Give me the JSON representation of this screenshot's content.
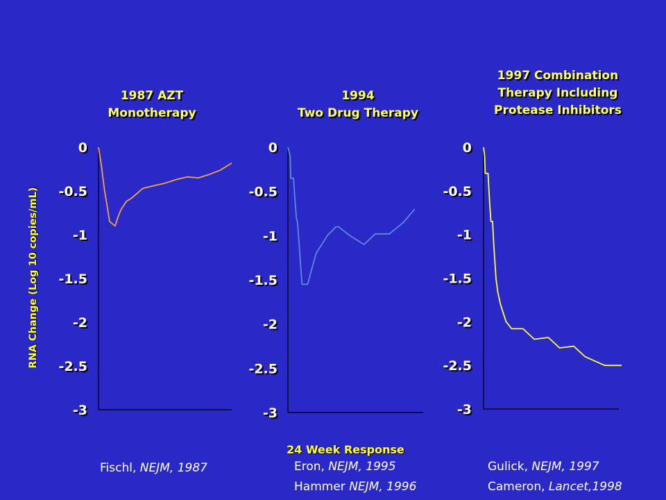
{
  "ylabel": "RNA Change (Log 10 copies/mL)",
  "xnote": "24 Week Response",
  "colors": {
    "background": "#2a29c8",
    "title": "#ffff66",
    "tick": "#ffffff"
  },
  "chart_data": [
    {
      "type": "line",
      "title_lines": [
        "1987 AZT",
        "Monotherapy"
      ],
      "yticks": [
        "0",
        "-0.5",
        "-1",
        "-1.5",
        "-2",
        "-2.5",
        "-3"
      ],
      "ylim": [
        -3,
        0
      ],
      "xlim": [
        0,
        24
      ],
      "series": [
        {
          "color": "#f5a341",
          "x": [
            0,
            0.5,
            0.8,
            1.1,
            1.5,
            2,
            3,
            3.5,
            4,
            5,
            6,
            8,
            10,
            12,
            14,
            16,
            18,
            20,
            22,
            24
          ],
          "y": [
            0,
            -0.2,
            -0.35,
            -0.5,
            -0.65,
            -0.85,
            -0.9,
            -0.8,
            -0.72,
            -0.62,
            -0.58,
            -0.47,
            -0.44,
            -0.41,
            -0.37,
            -0.34,
            -0.35,
            -0.31,
            -0.26,
            -0.18
          ]
        }
      ],
      "citation": [
        {
          "author": "Fischl, ",
          "journal": "NEJM, 1987"
        }
      ]
    },
    {
      "type": "line",
      "title_lines": [
        "1994",
        "Two Drug Therapy"
      ],
      "yticks": [
        "0",
        "-0.5",
        "-1",
        "-1.5",
        "-2",
        "-2.5",
        "-3"
      ],
      "ylim": [
        -3,
        0
      ],
      "xlim": [
        0,
        24
      ],
      "series": [
        {
          "color": "#5a8be0",
          "x": [
            0,
            0.4,
            0.5,
            1.0,
            1.2,
            1.5,
            1.7,
            2.0,
            2.1,
            2.5,
            3.5,
            5,
            7,
            8.5,
            9,
            11,
            13.5,
            15.5,
            18,
            20.5,
            22.5
          ],
          "y": [
            0,
            -0.1,
            -0.35,
            -0.35,
            -0.55,
            -0.8,
            -0.85,
            -1.1,
            -1.2,
            -1.55,
            -1.55,
            -1.2,
            -1.0,
            -0.9,
            -0.9,
            -1.0,
            -1.1,
            -0.98,
            -0.98,
            -0.85,
            -0.7
          ]
        }
      ],
      "citation": [
        {
          "author": "Eron, ",
          "journal": "NEJM, 1995"
        },
        {
          "author": "Hammer ",
          "journal": "NEJM, 1996"
        }
      ]
    },
    {
      "type": "line",
      "title_lines": [
        "1997 Combination",
        "Therapy Including",
        "Protease Inhibitors"
      ],
      "yticks": [
        "0",
        "-0.5",
        "-1",
        "-1.5",
        "-2",
        "-2.5",
        "-3"
      ],
      "ylim": [
        -3,
        0
      ],
      "xlim": [
        0,
        24
      ],
      "series": [
        {
          "color": "#ffff33",
          "x": [
            0,
            0.2,
            0.3,
            0.8,
            1.1,
            1.2,
            1.3,
            1.6,
            1.8,
            2.0,
            2.2,
            2.5,
            3,
            3.5,
            4,
            5,
            7,
            9,
            11.5,
            13.5,
            16,
            18,
            21.5,
            23,
            24.5
          ],
          "y": [
            0,
            -0.1,
            -0.3,
            -0.3,
            -0.65,
            -0.75,
            -0.85,
            -0.85,
            -1.1,
            -1.3,
            -1.5,
            -1.65,
            -1.8,
            -1.9,
            -2.0,
            -2.08,
            -2.08,
            -2.2,
            -2.18,
            -2.3,
            -2.28,
            -2.4,
            -2.5,
            -2.5,
            -2.5
          ]
        }
      ],
      "citation": [
        {
          "author": "Gulick, ",
          "journal": "NEJM, 1997"
        },
        {
          "author": "Cameron, ",
          "journal": "Lancet,1998"
        }
      ]
    }
  ]
}
